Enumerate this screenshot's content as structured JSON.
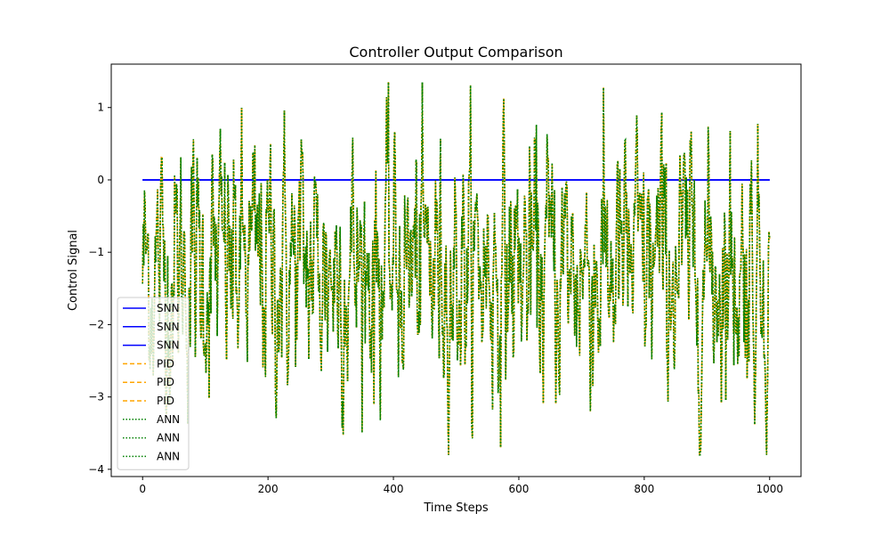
{
  "chart_data": {
    "type": "line",
    "title": "Controller Output Comparison",
    "xlabel": "Time Steps",
    "ylabel": "Control Signal",
    "xlim": [
      -50,
      1050
    ],
    "ylim": [
      -4.1,
      1.6
    ],
    "xticks": [
      0,
      200,
      400,
      600,
      800,
      1000
    ],
    "yticks": [
      -4,
      -3,
      -2,
      -1,
      0,
      1
    ],
    "grid": false,
    "legend_position": "lower-left",
    "series": [
      {
        "name": "SNN",
        "color": "#0000ff",
        "style": "solid",
        "values": "constant 0 over steps 0-1000"
      },
      {
        "name": "SNN",
        "color": "#0000ff",
        "style": "solid",
        "values": "constant 0 over steps 0-1000"
      },
      {
        "name": "SNN",
        "color": "#0000ff",
        "style": "solid",
        "values": "constant 0 over steps 0-1000"
      },
      {
        "name": "PID",
        "color": "#ffa500",
        "style": "dashed"
      },
      {
        "name": "PID",
        "color": "#ffa500",
        "style": "dashed"
      },
      {
        "name": "PID",
        "color": "#ffa500",
        "style": "dashed"
      },
      {
        "name": "ANN",
        "color": "#008000",
        "style": "dotted"
      },
      {
        "name": "ANN",
        "color": "#008000",
        "style": "dotted"
      },
      {
        "name": "ANN",
        "color": "#008000",
        "style": "dotted"
      }
    ],
    "snn_value": 0,
    "x_range": [
      0,
      1000
    ],
    "noisy_range": [
      -3.8,
      1.35
    ],
    "noisy_mean": -1.2
  }
}
